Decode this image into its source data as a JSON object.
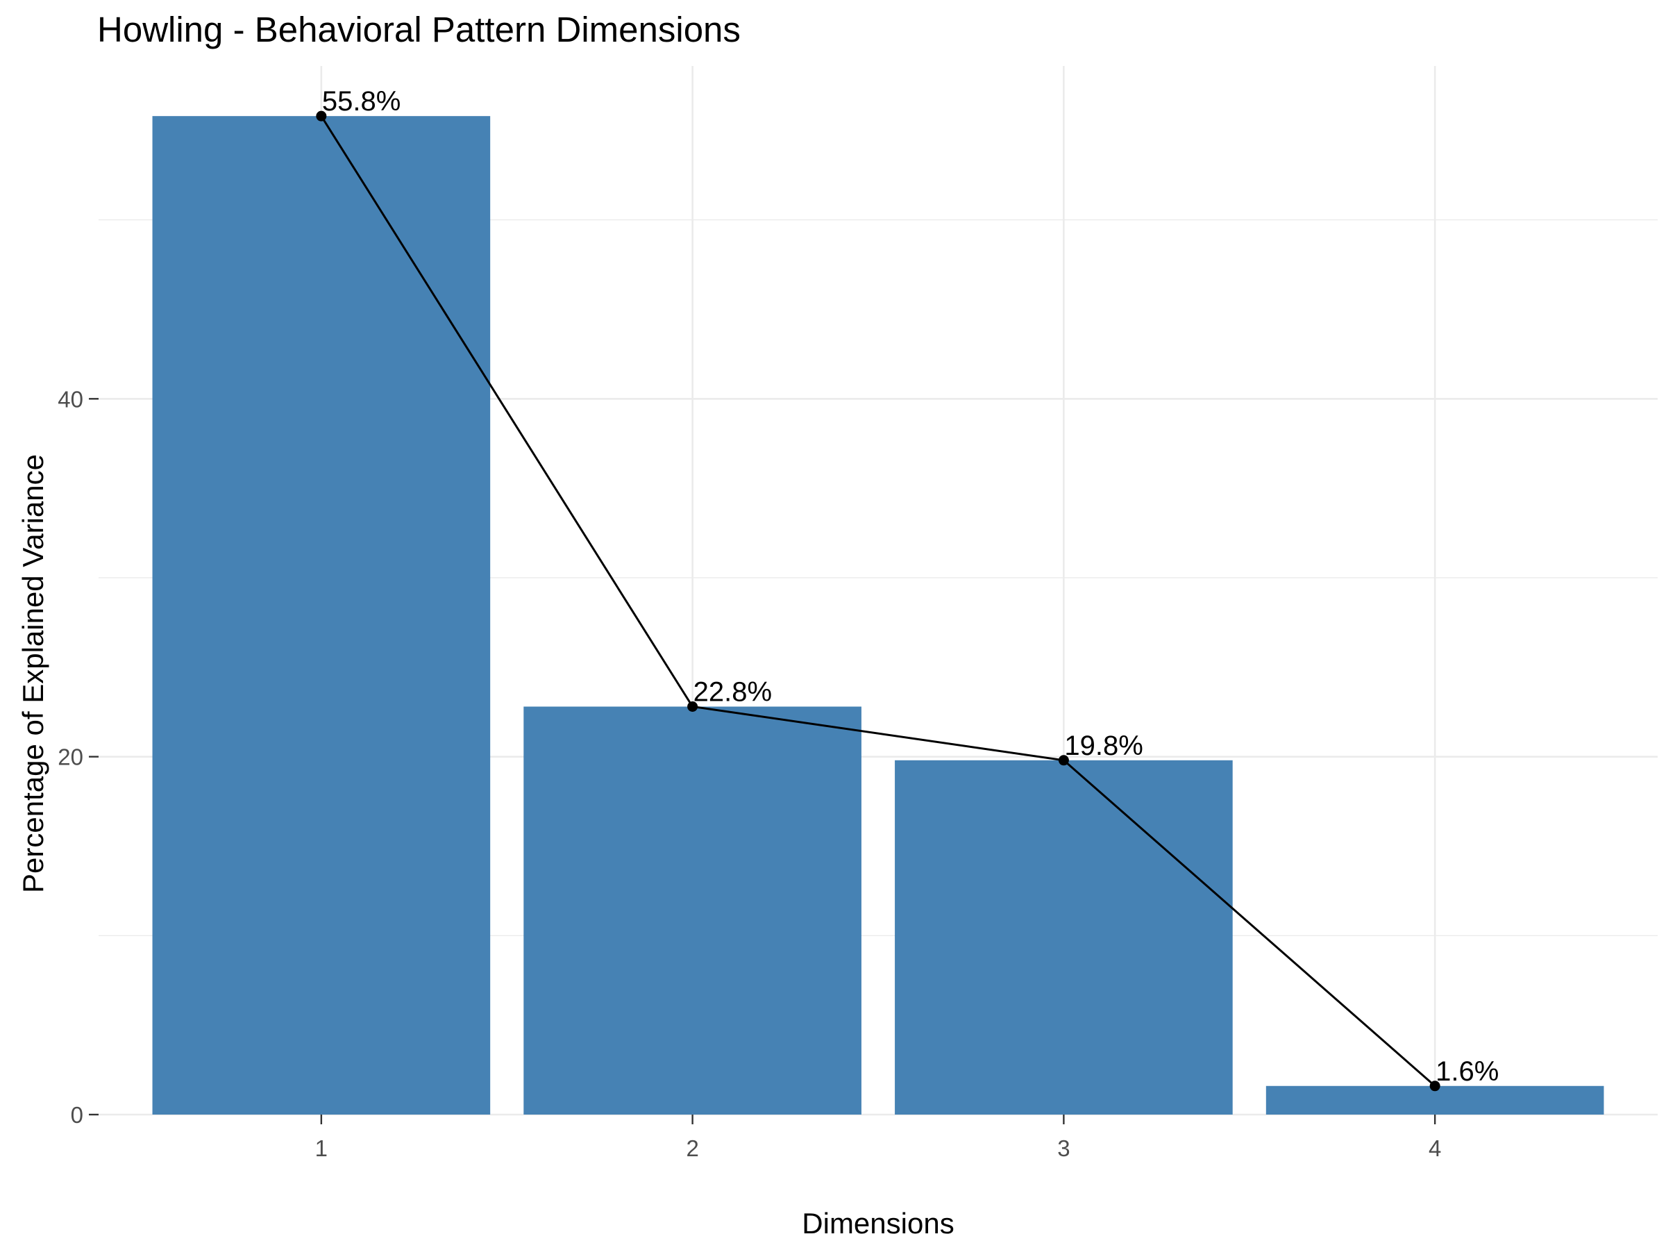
{
  "chart_data": {
    "type": "bar",
    "title": "Howling - Behavioral Pattern Dimensions",
    "xlabel": "Dimensions",
    "ylabel": "Percentage of Explained Variance",
    "categories": [
      "1",
      "2",
      "3",
      "4"
    ],
    "values": [
      55.8,
      22.8,
      19.8,
      1.6
    ],
    "data_labels": [
      "55.8%",
      "22.8%",
      "19.8%",
      "1.6%"
    ],
    "yticks": [
      0,
      20,
      40
    ],
    "ylim": [
      0,
      58.6
    ],
    "grid": true,
    "line_overlay": true,
    "colors": {
      "bar": "#4682B4",
      "line": "#000000",
      "point": "#000000"
    }
  }
}
